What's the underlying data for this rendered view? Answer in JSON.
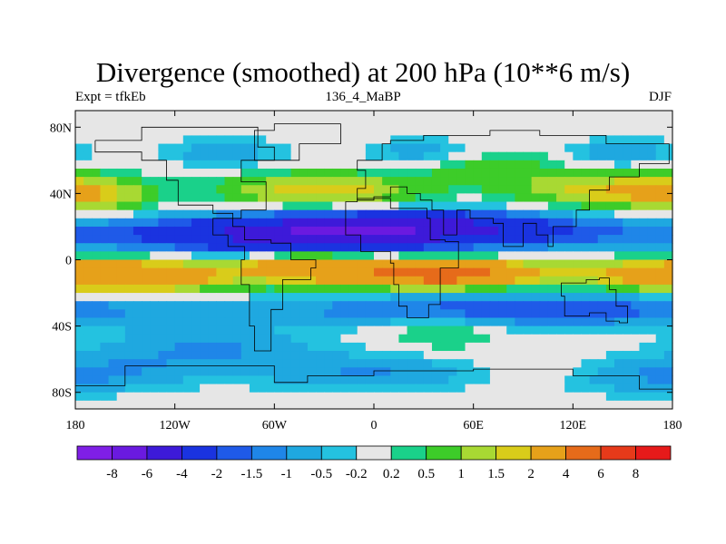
{
  "chart_data": {
    "type": "heatmap",
    "title": "Divergence (smoothed) at 200 hPa (10**6 m/s)",
    "subtitle_left": "Expt = tfkEb",
    "subtitle_center": "136_4_MaBP",
    "subtitle_right": "DJF",
    "x_ticks": [
      "180",
      "120W",
      "60W",
      "0",
      "60E",
      "120E",
      "180"
    ],
    "x_tick_values": [
      -180,
      -120,
      -60,
      0,
      60,
      120,
      180
    ],
    "y_ticks": [
      "80N",
      "40N",
      "0",
      "40S",
      "80S"
    ],
    "y_tick_values": [
      80,
      40,
      0,
      -40,
      -80
    ],
    "xlim": [
      -180,
      180
    ],
    "ylim": [
      -90,
      90
    ],
    "levels": [
      "-8",
      "-6",
      "-4",
      "-2",
      "-1.5",
      "-1",
      "-0.5",
      "-0.2",
      "0.2",
      "0.5",
      "1",
      "1.5",
      "2",
      "4",
      "6",
      "8"
    ],
    "level_values": [
      -8,
      -6,
      -4,
      -2,
      -1.5,
      -1,
      -0.5,
      -0.2,
      0.2,
      0.5,
      1,
      1.5,
      2,
      4,
      6,
      8
    ],
    "colors": [
      "#7f1fe6",
      "#6a1ae0",
      "#3d1ad9",
      "#1a33e0",
      "#1f5ae8",
      "#1f86e8",
      "#1fa8e0",
      "#24c2e0",
      "#e6e6e6",
      "#1ad18a",
      "#3dcc29",
      "#a8d933",
      "#d9cc1a",
      "#e6a11a",
      "#e66b1a",
      "#e63a1a",
      "#e61a1a"
    ],
    "grid": false,
    "legend_placement": "bottom"
  }
}
